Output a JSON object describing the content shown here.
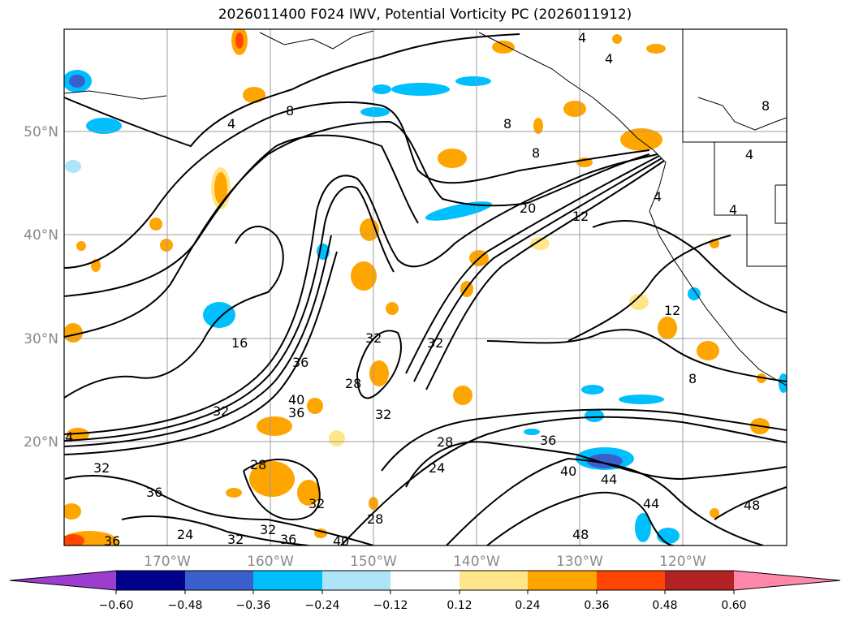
{
  "title": "2026011400 F024 IWV, Potential Vorticity PC (2026011912)",
  "map": {
    "lat_labels": [
      "50°N",
      "40°N",
      "30°N",
      "20°N"
    ],
    "lon_labels": [
      "170°W",
      "160°W",
      "150°W",
      "140°W",
      "130°W",
      "120°W"
    ]
  },
  "colorbar": {
    "levels": [
      "−0.60",
      "−0.48",
      "−0.36",
      "−0.24",
      "−0.12",
      "0.12",
      "0.24",
      "0.36",
      "0.48",
      "0.60"
    ],
    "colors": [
      "#9b3dcf",
      "#00008b",
      "#3a5fcd",
      "#00bfff",
      "#ade4f8",
      "#ffffff",
      "#ffe68a",
      "#ffa500",
      "#ff4500",
      "#b22222",
      "#ff88aa"
    ]
  },
  "contour_labels": [
    "4",
    "8",
    "4",
    "8",
    "8",
    "4",
    "8",
    "4",
    "4",
    "20",
    "12",
    "4",
    "16",
    "36",
    "32",
    "32",
    "28",
    "32",
    "28",
    "32",
    "32",
    "36",
    "12",
    "8",
    "32",
    "36",
    "40",
    "28",
    "24",
    "36",
    "40",
    "44",
    "44",
    "48",
    "48",
    "24",
    "32",
    "36",
    "40",
    "28",
    "36",
    "4",
    "32"
  ]
}
